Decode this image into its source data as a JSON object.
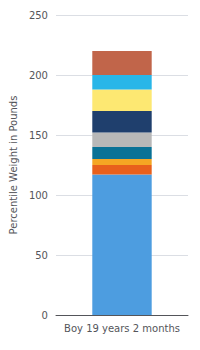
{
  "chart_data": {
    "type": "bar",
    "stacked": true,
    "ylabel": "Percentile Weight in Pounds",
    "categories": [
      "Boy 19 years 2 months"
    ],
    "series": [
      {
        "color": "#4d9de0",
        "values": [
          117
        ]
      },
      {
        "color": "#e8601c",
        "values": [
          8
        ]
      },
      {
        "color": "#f5a623",
        "values": [
          5
        ]
      },
      {
        "color": "#0a7296",
        "values": [
          10
        ]
      },
      {
        "color": "#b8b8b8",
        "values": [
          12
        ]
      },
      {
        "color": "#1f3f6d",
        "values": [
          18
        ]
      },
      {
        "color": "#fde872",
        "values": [
          18
        ]
      },
      {
        "color": "#29b6e8",
        "values": [
          12
        ]
      },
      {
        "color": "#c1654a",
        "values": [
          20
        ]
      }
    ],
    "ylim": [
      0,
      250
    ],
    "yticks": [
      0,
      50,
      100,
      150,
      200,
      250
    ],
    "grid": true
  }
}
